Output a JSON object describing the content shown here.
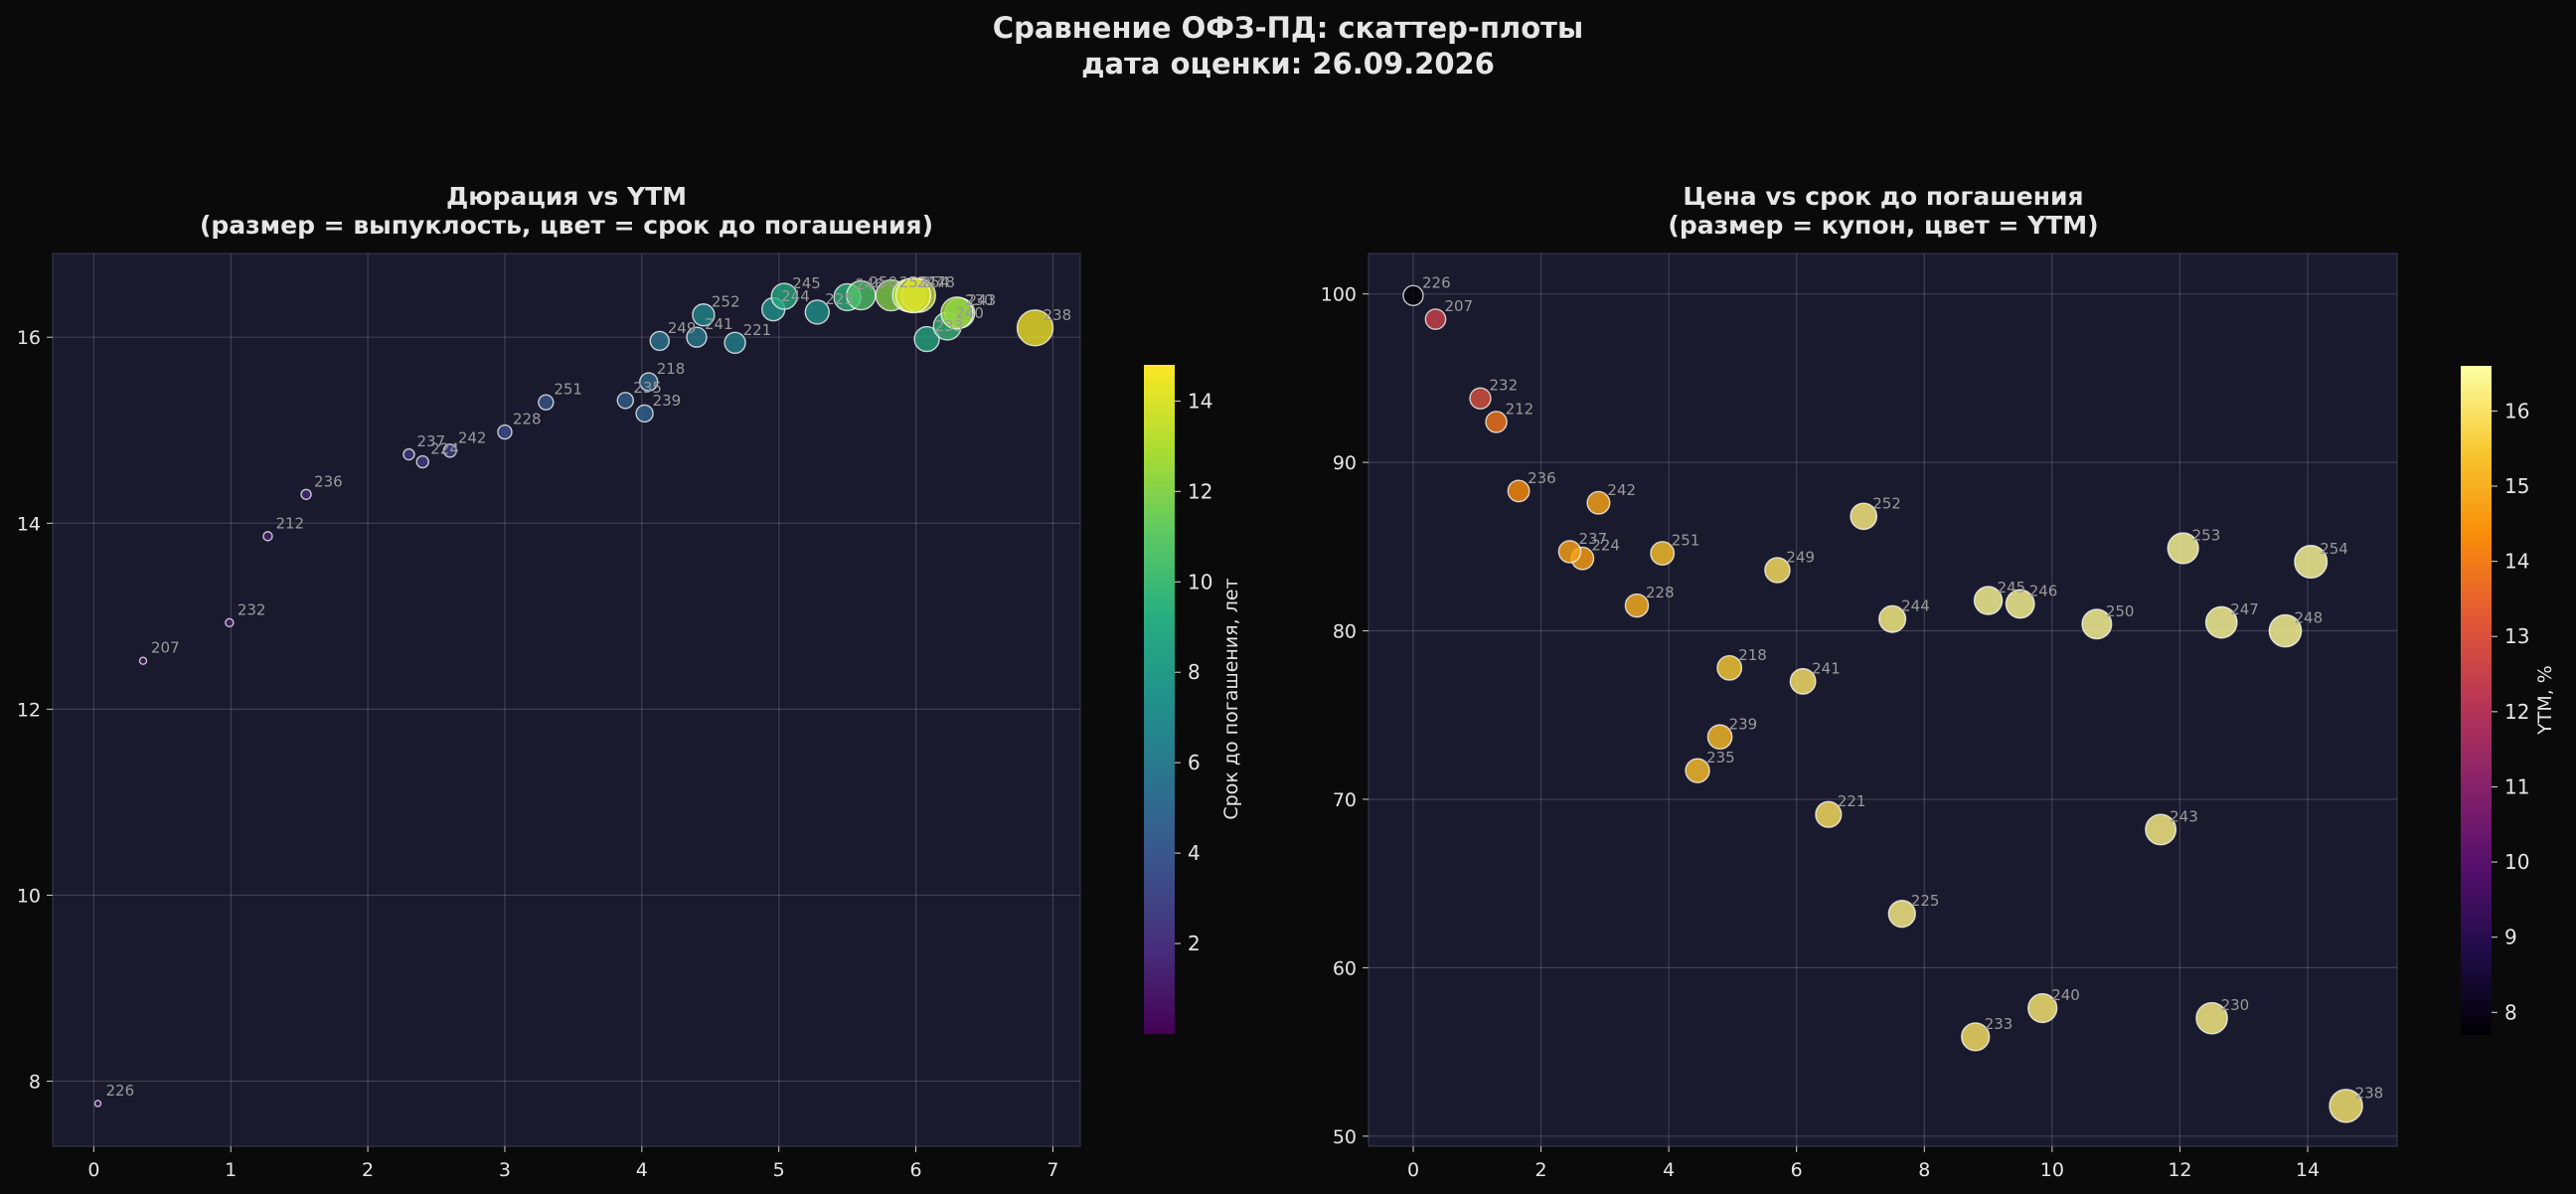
{
  "title_line1": "Сравнение ОФЗ-ПД: скаттер-плоты",
  "title_line2": "дата оценки: 26.09.2026",
  "chart_data": [
    {
      "type": "scatter",
      "title": "Дюрация vs YTM",
      "subtitle": "(размер = выпуклость, цвет = срок до погашения)",
      "xlabel": "",
      "ylabel": "",
      "xlim": [
        -0.3,
        7.2
      ],
      "ylim": [
        7.3,
        16.9
      ],
      "xticks": [
        0,
        1,
        2,
        3,
        4,
        5,
        6,
        7
      ],
      "yticks": [
        8,
        10,
        12,
        14,
        16
      ],
      "grid": true,
      "colorbar": {
        "label": "Срок до погашения, лет",
        "range": [
          0.0,
          14.8
        ],
        "ticks": [
          2,
          4,
          6,
          8,
          10,
          12,
          14
        ],
        "colormap": "viridis"
      },
      "points": [
        {
          "label": "226",
          "x": 0.03,
          "y": 7.76,
          "color_value": 0.0
        },
        {
          "label": "207",
          "x": 0.36,
          "y": 12.52,
          "color_value": 0.4
        },
        {
          "label": "232",
          "x": 0.99,
          "y": 12.93,
          "color_value": 1.1
        },
        {
          "label": "212",
          "x": 1.27,
          "y": 13.86,
          "color_value": 1.3
        },
        {
          "label": "236",
          "x": 1.55,
          "y": 14.31,
          "color_value": 1.7
        },
        {
          "label": "237",
          "x": 2.3,
          "y": 14.74,
          "color_value": 2.4
        },
        {
          "label": "224",
          "x": 2.4,
          "y": 14.66,
          "color_value": 2.6
        },
        {
          "label": "242",
          "x": 2.6,
          "y": 14.78,
          "color_value": 2.9
        },
        {
          "label": "228",
          "x": 3.0,
          "y": 14.98,
          "color_value": 3.5
        },
        {
          "label": "251",
          "x": 3.3,
          "y": 15.3,
          "color_value": 3.9
        },
        {
          "label": "235",
          "x": 3.88,
          "y": 15.32,
          "color_value": 4.5
        },
        {
          "label": "239",
          "x": 4.02,
          "y": 15.18,
          "color_value": 4.8
        },
        {
          "label": "218",
          "x": 4.05,
          "y": 15.52,
          "color_value": 5.0
        },
        {
          "label": "249",
          "x": 4.13,
          "y": 15.96,
          "color_value": 5.7
        },
        {
          "label": "241",
          "x": 4.4,
          "y": 16.0,
          "color_value": 6.1
        },
        {
          "label": "252",
          "x": 4.45,
          "y": 16.24,
          "color_value": 7.0
        },
        {
          "label": "221",
          "x": 4.68,
          "y": 15.94,
          "color_value": 6.5
        },
        {
          "label": "244",
          "x": 4.96,
          "y": 16.3,
          "color_value": 7.5
        },
        {
          "label": "245",
          "x": 5.04,
          "y": 16.44,
          "color_value": 9.0
        },
        {
          "label": "225",
          "x": 5.28,
          "y": 16.27,
          "color_value": 7.6
        },
        {
          "label": "246",
          "x": 5.5,
          "y": 16.43,
          "color_value": 9.5
        },
        {
          "label": "250",
          "x": 5.6,
          "y": 16.45,
          "color_value": 10.7
        },
        {
          "label": "233",
          "x": 6.08,
          "y": 15.98,
          "color_value": 8.8
        },
        {
          "label": "240",
          "x": 6.23,
          "y": 16.12,
          "color_value": 9.8
        },
        {
          "label": "243",
          "x": 6.32,
          "y": 16.26,
          "color_value": 11.7
        },
        {
          "label": "253",
          "x": 5.82,
          "y": 16.45,
          "color_value": 12.0
        },
        {
          "label": "247",
          "x": 5.95,
          "y": 16.45,
          "color_value": 12.6
        },
        {
          "label": "254",
          "x": 5.98,
          "y": 16.45,
          "color_value": 14.0
        },
        {
          "label": "230",
          "x": 6.3,
          "y": 16.26,
          "color_value": 12.5
        },
        {
          "label": "248",
          "x": 6.02,
          "y": 16.45,
          "color_value": 13.6
        },
        {
          "label": "238",
          "x": 6.87,
          "y": 16.1,
          "color_value": 14.6
        }
      ]
    },
    {
      "type": "scatter",
      "title": "Цена vs срок до погашения",
      "subtitle": "(размер = купон, цвет = YTM)",
      "xlabel": "",
      "ylabel": "",
      "xlim": [
        -0.7,
        15.4
      ],
      "ylim": [
        49.4,
        102.4
      ],
      "xticks": [
        0,
        2,
        4,
        6,
        8,
        10,
        12,
        14
      ],
      "yticks": [
        50,
        60,
        70,
        80,
        90,
        100
      ],
      "grid": true,
      "colorbar": {
        "label": "YTM, %",
        "range": [
          7.7,
          16.6
        ],
        "ticks": [
          8,
          9,
          10,
          11,
          12,
          13,
          14,
          15,
          16
        ],
        "colormap": "inferno"
      },
      "points": [
        {
          "label": "226",
          "x": 0.0,
          "y": 99.9,
          "color_value": 7.76
        },
        {
          "label": "207",
          "x": 0.35,
          "y": 98.5,
          "color_value": 12.52
        },
        {
          "label": "232",
          "x": 1.05,
          "y": 93.8,
          "color_value": 12.93
        },
        {
          "label": "212",
          "x": 1.3,
          "y": 92.4,
          "color_value": 13.86
        },
        {
          "label": "236",
          "x": 1.65,
          "y": 88.3,
          "color_value": 14.31
        },
        {
          "label": "242",
          "x": 2.9,
          "y": 87.6,
          "color_value": 14.78
        },
        {
          "label": "237",
          "x": 2.45,
          "y": 84.7,
          "color_value": 14.74
        },
        {
          "label": "224",
          "x": 2.65,
          "y": 84.3,
          "color_value": 14.66
        },
        {
          "label": "251",
          "x": 3.9,
          "y": 84.6,
          "color_value": 15.3
        },
        {
          "label": "228",
          "x": 3.5,
          "y": 81.5,
          "color_value": 14.98
        },
        {
          "label": "252",
          "x": 7.05,
          "y": 86.8,
          "color_value": 16.24
        },
        {
          "label": "249",
          "x": 5.7,
          "y": 83.6,
          "color_value": 15.96
        },
        {
          "label": "244",
          "x": 7.5,
          "y": 80.7,
          "color_value": 16.3
        },
        {
          "label": "245",
          "x": 9.0,
          "y": 81.8,
          "color_value": 16.44
        },
        {
          "label": "246",
          "x": 9.5,
          "y": 81.6,
          "color_value": 16.43
        },
        {
          "label": "250",
          "x": 10.7,
          "y": 80.4,
          "color_value": 16.45
        },
        {
          "label": "253",
          "x": 12.05,
          "y": 84.9,
          "color_value": 16.45
        },
        {
          "label": "254",
          "x": 14.05,
          "y": 84.1,
          "color_value": 16.45
        },
        {
          "label": "247",
          "x": 12.65,
          "y": 80.5,
          "color_value": 16.45
        },
        {
          "label": "248",
          "x": 13.65,
          "y": 80.0,
          "color_value": 16.45
        },
        {
          "label": "218",
          "x": 4.95,
          "y": 77.8,
          "color_value": 15.52
        },
        {
          "label": "241",
          "x": 6.1,
          "y": 77.0,
          "color_value": 16.0
        },
        {
          "label": "239",
          "x": 4.8,
          "y": 73.7,
          "color_value": 15.18
        },
        {
          "label": "235",
          "x": 4.45,
          "y": 71.7,
          "color_value": 15.32
        },
        {
          "label": "221",
          "x": 6.5,
          "y": 69.1,
          "color_value": 15.94
        },
        {
          "label": "243",
          "x": 11.7,
          "y": 68.2,
          "color_value": 16.26
        },
        {
          "label": "225",
          "x": 7.65,
          "y": 63.2,
          "color_value": 16.27
        },
        {
          "label": "240",
          "x": 9.85,
          "y": 57.6,
          "color_value": 16.12
        },
        {
          "label": "230",
          "x": 12.5,
          "y": 57.0,
          "color_value": 16.26
        },
        {
          "label": "233",
          "x": 8.8,
          "y": 55.9,
          "color_value": 15.98
        },
        {
          "label": "238",
          "x": 14.6,
          "y": 51.8,
          "color_value": 16.1
        }
      ]
    }
  ]
}
